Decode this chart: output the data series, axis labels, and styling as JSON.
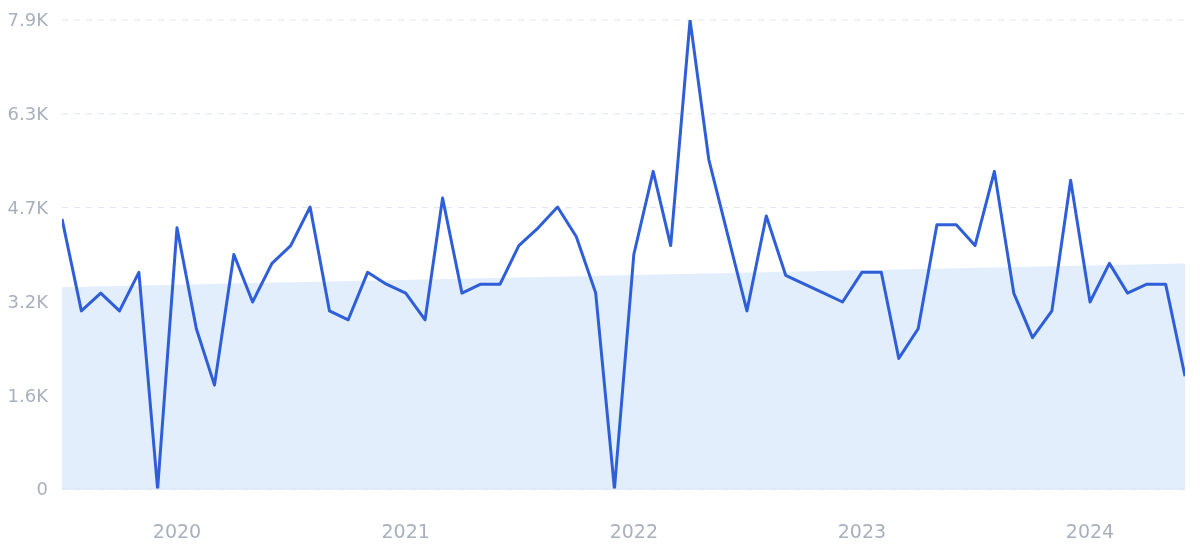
{
  "chart_data": {
    "type": "line",
    "x": [
      "2019-07",
      "2019-08",
      "2019-09",
      "2019-10",
      "2019-11",
      "2019-12",
      "2020-01",
      "2020-02",
      "2020-03",
      "2020-04",
      "2020-05",
      "2020-06",
      "2020-07",
      "2020-08",
      "2020-09",
      "2020-10",
      "2020-11",
      "2020-12",
      "2021-01",
      "2021-02",
      "2021-03",
      "2021-04",
      "2021-05",
      "2021-06",
      "2021-07",
      "2021-08",
      "2021-09",
      "2021-10",
      "2021-11",
      "2021-12",
      "2022-01",
      "2022-02",
      "2022-03",
      "2022-04",
      "2022-05",
      "2022-06",
      "2022-07",
      "2022-08",
      "2022-09",
      "2022-10",
      "2022-11",
      "2022-12",
      "2023-01",
      "2023-02",
      "2023-03",
      "2023-04",
      "2023-05",
      "2023-06",
      "2023-07",
      "2023-08",
      "2023-09",
      "2023-10",
      "2023-11",
      "2023-12",
      "2024-01",
      "2024-02",
      "2024-03",
      "2024-04",
      "2024-05",
      "2024-06"
    ],
    "series": [
      {
        "type": "area",
        "color": "#e3eefc",
        "x": [
          "2019-07",
          "2024-06"
        ],
        "values": [
          3400,
          3800
        ]
      },
      {
        "color": "#2f5fd8",
        "values": [
          4550,
          3000,
          3300,
          3000,
          3650,
          0,
          4400,
          2700,
          1750,
          3950,
          3150,
          3800,
          4100,
          4750,
          3000,
          2850,
          3650,
          3450,
          3300,
          2850,
          4900,
          3300,
          3450,
          3450,
          4100,
          4400,
          4750,
          4250,
          3300,
          0,
          3950,
          5350,
          4100,
          7900,
          5550,
          4250,
          3000,
          4600,
          3600,
          3450,
          3300,
          3150,
          3650,
          3650,
          2200,
          2700,
          4450,
          4450,
          4100,
          5350,
          3300,
          2550,
          3000,
          5200,
          3150,
          3800,
          3300,
          3450,
          3450,
          1900
        ]
      }
    ],
    "xlim": [
      "2019-07",
      "2024-06"
    ],
    "xticks": [
      "2020",
      "2021",
      "2022",
      "2023",
      "2024"
    ],
    "ylim": [
      0,
      7900
    ],
    "yticks": [
      0,
      {
        "value": 1580,
        "label": "1.6K"
      },
      {
        "value": 3160,
        "label": "3.2K"
      },
      {
        "value": 4740,
        "label": "4.7K"
      },
      {
        "value": 6320,
        "label": "6.3K"
      },
      {
        "value": 7900,
        "label": "7.9K"
      }
    ],
    "grid": "y",
    "line_style": "solid",
    "marker": "none"
  }
}
